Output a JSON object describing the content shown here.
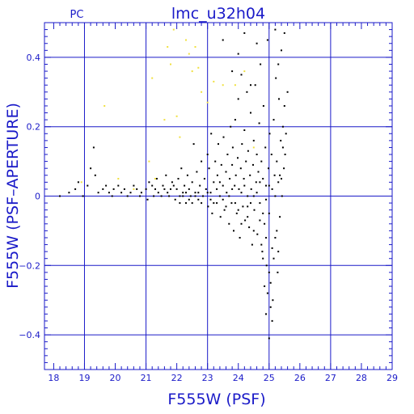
{
  "chart_data": {
    "type": "scatter",
    "title": "lmc_u32h04",
    "subtitle": "PC",
    "xlabel": "F555W (PSF)",
    "ylabel": "F555W (PSF–APERTURE)",
    "xlim": [
      17.7,
      29.0
    ],
    "ylim": [
      -0.5,
      0.5
    ],
    "x_ticks": [
      18,
      19,
      20,
      21,
      22,
      23,
      24,
      25,
      26,
      27,
      28,
      29
    ],
    "y_ticks": [
      -0.4,
      -0.2,
      0,
      0.2,
      0.4
    ],
    "x_tick_labels": [
      "18",
      "19",
      "20",
      "21",
      "22",
      "23",
      "24",
      "25",
      "26",
      "27",
      "28",
      "29"
    ],
    "y_tick_labels": [
      "−0.4",
      "−0.2",
      "0",
      "0.2",
      "0.4"
    ],
    "grid": true,
    "colors": {
      "axes": "#1a1ac8",
      "grid": "#1a1ac8",
      "points": "#000000",
      "highlight": "#f0e040"
    },
    "series": [
      {
        "color": "#000000",
        "points": [
          [
            18.2,
            0.0
          ],
          [
            18.5,
            0.01
          ],
          [
            18.7,
            0.02
          ],
          [
            18.8,
            0.04
          ],
          [
            18.95,
            0.0
          ],
          [
            19.1,
            0.03
          ],
          [
            19.2,
            0.08
          ],
          [
            19.3,
            0.14
          ],
          [
            19.35,
            0.06
          ],
          [
            19.45,
            0.01
          ],
          [
            19.6,
            0.02
          ],
          [
            19.7,
            0.03
          ],
          [
            19.8,
            0.01
          ],
          [
            19.9,
            0.0
          ],
          [
            19.95,
            0.02
          ],
          [
            20.1,
            0.03
          ],
          [
            20.2,
            0.01
          ],
          [
            20.3,
            0.02
          ],
          [
            20.4,
            0.0
          ],
          [
            20.5,
            0.01
          ],
          [
            20.6,
            0.03
          ],
          [
            20.7,
            0.02
          ],
          [
            20.8,
            0.0
          ],
          [
            20.85,
            0.01
          ],
          [
            21.0,
            0.02
          ],
          [
            21.05,
            -0.01
          ],
          [
            21.1,
            0.04
          ],
          [
            21.2,
            0.03
          ],
          [
            21.25,
            0.0
          ],
          [
            21.3,
            0.02
          ],
          [
            21.35,
            0.05
          ],
          [
            21.4,
            0.01
          ],
          [
            21.5,
            0.0
          ],
          [
            21.55,
            0.03
          ],
          [
            21.6,
            0.02
          ],
          [
            21.65,
            0.06
          ],
          [
            21.7,
            0.01
          ],
          [
            21.75,
            0.0
          ],
          [
            21.8,
            0.02
          ],
          [
            21.85,
            0.04
          ],
          [
            21.9,
            0.03
          ],
          [
            21.95,
            -0.01
          ],
          [
            22.0,
            0.02
          ],
          [
            22.05,
            0.05
          ],
          [
            22.1,
            0.0
          ],
          [
            22.15,
            0.08
          ],
          [
            22.2,
            0.01
          ],
          [
            22.25,
            0.03
          ],
          [
            22.3,
            -0.02
          ],
          [
            22.35,
            0.06
          ],
          [
            22.4,
            0.02
          ],
          [
            22.45,
            0.0
          ],
          [
            22.5,
            0.04
          ],
          [
            22.55,
            0.15
          ],
          [
            22.6,
            0.01
          ],
          [
            22.65,
            0.07
          ],
          [
            22.7,
            -0.01
          ],
          [
            22.75,
            0.03
          ],
          [
            22.8,
            0.1
          ],
          [
            22.85,
            0.0
          ],
          [
            22.9,
            0.05
          ],
          [
            22.95,
            0.02
          ],
          [
            23.0,
            0.12
          ],
          [
            23.02,
            -0.03
          ],
          [
            23.05,
            0.08
          ],
          [
            23.1,
            0.01
          ],
          [
            23.12,
            0.18
          ],
          [
            23.15,
            -0.05
          ],
          [
            23.2,
            0.04
          ],
          [
            23.25,
            0.1
          ],
          [
            23.3,
            -0.02
          ],
          [
            23.32,
            0.06
          ],
          [
            23.35,
            0.15
          ],
          [
            23.4,
            0.0
          ],
          [
            23.42,
            -0.06
          ],
          [
            23.45,
            0.09
          ],
          [
            23.5,
            0.03
          ],
          [
            23.52,
            0.17
          ],
          [
            23.55,
            -0.04
          ],
          [
            23.6,
            0.07
          ],
          [
            23.62,
            0.01
          ],
          [
            23.65,
            0.12
          ],
          [
            23.7,
            -0.08
          ],
          [
            23.72,
            0.05
          ],
          [
            23.75,
            0.2
          ],
          [
            23.78,
            -0.02
          ],
          [
            23.8,
            0.09
          ],
          [
            23.82,
            0.14
          ],
          [
            23.85,
            -0.1
          ],
          [
            23.88,
            0.03
          ],
          [
            23.9,
            0.22
          ],
          [
            23.92,
            0.06
          ],
          [
            23.95,
            -0.05
          ],
          [
            23.98,
            0.11
          ],
          [
            24.0,
            0.28
          ],
          [
            24.02,
            0.02
          ],
          [
            24.05,
            -0.12
          ],
          [
            24.08,
            0.08
          ],
          [
            24.1,
            0.35
          ],
          [
            24.12,
            0.15
          ],
          [
            24.15,
            -0.03
          ],
          [
            24.18,
            0.05
          ],
          [
            24.2,
            0.19
          ],
          [
            24.22,
            -0.07
          ],
          [
            24.25,
            0.1
          ],
          [
            24.28,
            0.3
          ],
          [
            24.3,
            0.0
          ],
          [
            24.32,
            0.13
          ],
          [
            24.35,
            -0.09
          ],
          [
            24.38,
            0.06
          ],
          [
            24.4,
            0.24
          ],
          [
            24.42,
            0.02
          ],
          [
            24.45,
            -0.14
          ],
          [
            24.48,
            0.09
          ],
          [
            24.5,
            0.16
          ],
          [
            24.52,
            -0.04
          ],
          [
            24.55,
            0.32
          ],
          [
            24.58,
            0.04
          ],
          [
            24.6,
            0.12
          ],
          [
            24.62,
            -0.11
          ],
          [
            24.65,
            0.07
          ],
          [
            24.68,
            0.21
          ],
          [
            24.7,
            -0.02
          ],
          [
            24.72,
            0.38
          ],
          [
            24.75,
            0.1
          ],
          [
            24.78,
            -0.16
          ],
          [
            24.8,
            0.05
          ],
          [
            24.82,
            0.26
          ],
          [
            24.85,
            -0.08
          ],
          [
            24.88,
            0.14
          ],
          [
            24.9,
            0.03
          ],
          [
            24.92,
            -0.2
          ],
          [
            24.95,
            0.45
          ],
          [
            24.98,
            0.08
          ],
          [
            25.0,
            -0.05
          ],
          [
            25.02,
            0.18
          ],
          [
            25.05,
            -0.25
          ],
          [
            25.08,
            0.12
          ],
          [
            25.1,
            0.02
          ],
          [
            25.12,
            -0.3
          ],
          [
            25.15,
            0.22
          ],
          [
            25.18,
            0.06
          ],
          [
            25.2,
            -0.12
          ],
          [
            25.22,
            0.34
          ],
          [
            25.25,
            0.1
          ],
          [
            25.28,
            -0.22
          ],
          [
            25.3,
            0.04
          ],
          [
            25.32,
            0.28
          ],
          [
            25.35,
            -0.06
          ],
          [
            25.38,
            0.16
          ],
          [
            25.4,
            0.42
          ],
          [
            25.42,
            0.0
          ],
          [
            25.45,
            0.2
          ],
          [
            25.48,
            0.08
          ],
          [
            25.5,
            0.26
          ],
          [
            25.52,
            0.12
          ],
          [
            25.55,
            0.18
          ],
          [
            25.6,
            0.3
          ],
          [
            23.1,
            -0.01
          ],
          [
            23.3,
            0.02
          ],
          [
            23.5,
            -0.01
          ],
          [
            23.7,
            0.0
          ],
          [
            23.9,
            -0.02
          ],
          [
            24.1,
            0.01
          ],
          [
            24.3,
            -0.03
          ],
          [
            24.5,
            0.0
          ],
          [
            24.7,
            0.04
          ],
          [
            24.9,
            -0.01
          ],
          [
            23.4,
            0.04
          ],
          [
            23.6,
            -0.03
          ],
          [
            23.8,
            0.02
          ],
          [
            24.0,
            -0.04
          ],
          [
            24.2,
            0.03
          ],
          [
            24.4,
            -0.02
          ],
          [
            24.6,
            0.01
          ],
          [
            24.8,
            -0.05
          ],
          [
            25.0,
            0.03
          ],
          [
            25.2,
            0.0
          ],
          [
            22.2,
            0.0
          ],
          [
            22.4,
            -0.01
          ],
          [
            22.6,
            0.0
          ],
          [
            22.8,
            -0.02
          ],
          [
            23.0,
            0.01
          ],
          [
            23.2,
            -0.02
          ],
          [
            22.1,
            -0.02
          ],
          [
            22.3,
            0.01
          ],
          [
            22.5,
            -0.02
          ],
          [
            22.7,
            0.01
          ],
          [
            24.1,
            -0.08
          ],
          [
            24.3,
            -0.06
          ],
          [
            24.5,
            -0.1
          ],
          [
            24.7,
            -0.07
          ],
          [
            24.9,
            -0.12
          ],
          [
            25.1,
            -0.15
          ],
          [
            24.8,
            -0.18
          ],
          [
            25.0,
            -0.22
          ],
          [
            24.95,
            -0.28
          ],
          [
            25.05,
            -0.32
          ],
          [
            24.85,
            -0.26
          ],
          [
            25.15,
            -0.18
          ],
          [
            24.75,
            -0.14
          ],
          [
            25.1,
            -0.36
          ],
          [
            25.0,
            -0.41
          ],
          [
            24.9,
            -0.34
          ],
          [
            25.25,
            -0.1
          ],
          [
            25.3,
            -0.16
          ],
          [
            25.35,
            0.06
          ],
          [
            25.45,
            0.14
          ],
          [
            23.5,
            0.45
          ],
          [
            24.2,
            0.47
          ],
          [
            24.6,
            0.44
          ],
          [
            25.2,
            0.48
          ],
          [
            25.5,
            0.47
          ],
          [
            24.0,
            0.41
          ],
          [
            23.8,
            0.36
          ],
          [
            24.4,
            0.32
          ],
          [
            25.3,
            0.38
          ],
          [
            25.4,
            0.05
          ]
        ]
      },
      {
        "color": "#f0e040",
        "points": [
          [
            18.9,
            0.04
          ],
          [
            19.65,
            0.26
          ],
          [
            20.1,
            0.05
          ],
          [
            20.6,
            0.02
          ],
          [
            21.1,
            0.1
          ],
          [
            21.2,
            0.34
          ],
          [
            21.3,
            0.05
          ],
          [
            21.6,
            0.22
          ],
          [
            21.7,
            0.43
          ],
          [
            21.8,
            0.38
          ],
          [
            21.9,
            0.48
          ],
          [
            22.0,
            0.23
          ],
          [
            22.1,
            0.17
          ],
          [
            22.3,
            0.45
          ],
          [
            22.4,
            0.41
          ],
          [
            22.5,
            0.36
          ],
          [
            22.6,
            0.43
          ],
          [
            22.7,
            0.37
          ],
          [
            22.8,
            0.3
          ],
          [
            23.0,
            0.27
          ],
          [
            23.2,
            0.33
          ],
          [
            23.5,
            0.32
          ],
          [
            23.9,
            0.32
          ],
          [
            24.2,
            0.36
          ],
          [
            24.5,
            0.14
          ]
        ]
      }
    ]
  }
}
